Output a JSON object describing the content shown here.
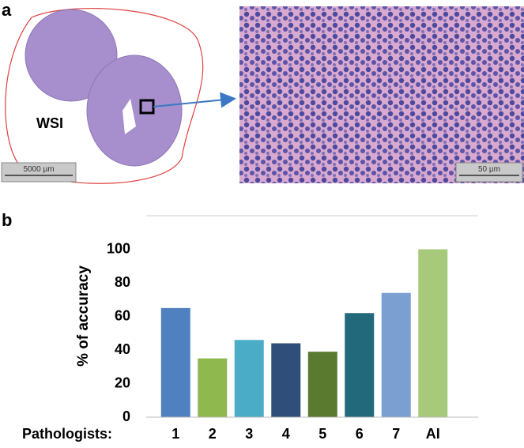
{
  "figure": {
    "panel_a": "a",
    "wsi_label": "WSI",
    "scale_left": "5000 µm",
    "scale_right": "50 µm",
    "panel_b": "b"
  },
  "chart_data": {
    "type": "bar",
    "y_label": "% of accuracy",
    "x_label": "Pathologists:",
    "categories": [
      "1",
      "2",
      "3",
      "4",
      "5",
      "6",
      "7",
      "AI"
    ],
    "values": [
      65,
      35,
      46,
      44,
      39,
      62,
      74,
      100
    ],
    "colors": [
      "#4f80bf",
      "#8fb84f",
      "#4aacc6",
      "#2f4e7a",
      "#5a7a30",
      "#23697c",
      "#7a9fd0",
      "#a6c97a"
    ],
    "ylim": [
      0,
      120
    ],
    "yticks": [
      0,
      20,
      40,
      60,
      80,
      100
    ]
  }
}
